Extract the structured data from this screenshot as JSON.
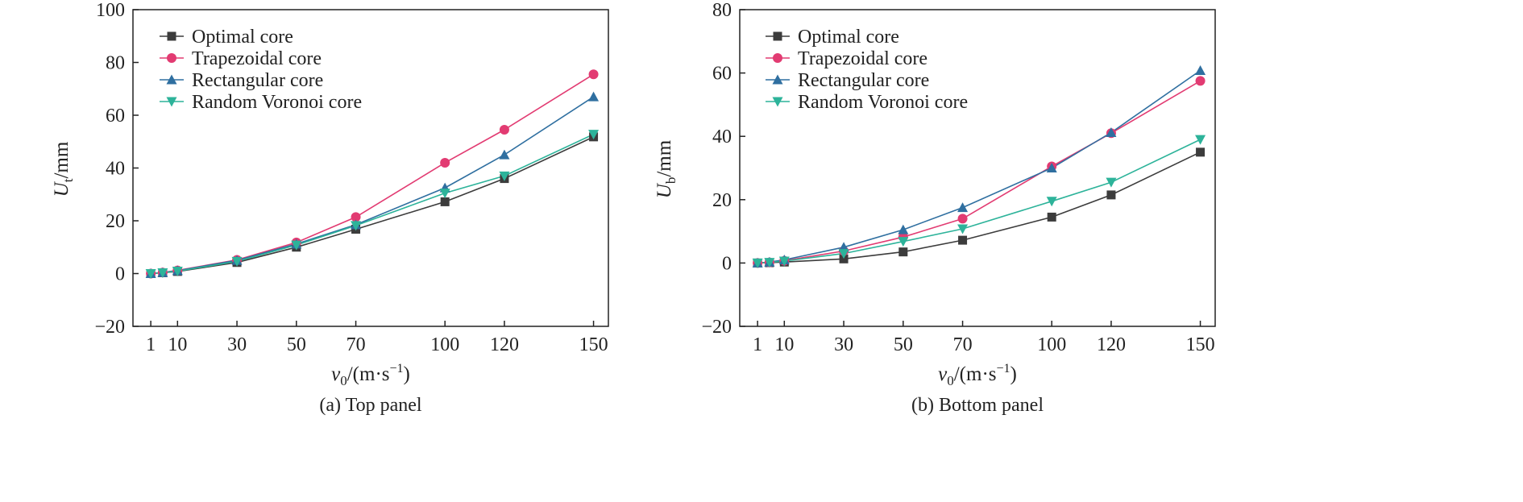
{
  "chart_data": [
    {
      "type": "line",
      "panel_caption": "(a) Top panel",
      "ylabel_main": "U",
      "ylabel_sub": "t",
      "ylabel_unit": "/mm",
      "xlabel_main": "v",
      "xlabel_sub": "0",
      "xlabel_unit": "/(m·s",
      "xlabel_exp": "−1",
      "xlabel_close": ")",
      "xlim": [
        -5,
        155
      ],
      "ylim": [
        -20,
        100
      ],
      "xticks": [
        1,
        10,
        30,
        50,
        70,
        100,
        120,
        150
      ],
      "yticks": [
        -20,
        0,
        20,
        40,
        60,
        80,
        100
      ],
      "ytick_labels": [
        "−20",
        "0",
        "20",
        "40",
        "60",
        "80",
        "100"
      ],
      "x": [
        1,
        5,
        10,
        30,
        50,
        70,
        100,
        120,
        150
      ],
      "series": [
        {
          "name": "Optimal core",
          "marker": "square",
          "color": "#3c3c3c",
          "values": [
            0,
            0.3,
            0.8,
            4.2,
            10.0,
            16.8,
            27.2,
            36.0,
            51.8
          ]
        },
        {
          "name": "Trapezoidal core",
          "marker": "circle",
          "color": "#e23b72",
          "values": [
            0,
            0.4,
            1.2,
            5.2,
            11.8,
            21.4,
            42.0,
            54.5,
            75.5
          ]
        },
        {
          "name": "Rectangular core",
          "marker": "triangle-up",
          "color": "#2f6fa0",
          "values": [
            0,
            0.4,
            1.1,
            5.0,
            11.2,
            18.5,
            32.5,
            45.0,
            67.0
          ]
        },
        {
          "name": "Random Voronoi core",
          "marker": "triangle-down",
          "color": "#2db39a",
          "values": [
            0,
            0.3,
            0.9,
            4.6,
            10.8,
            18.2,
            30.5,
            37.0,
            52.8
          ]
        }
      ]
    },
    {
      "type": "line",
      "panel_caption": "(b) Bottom panel",
      "ylabel_main": "U",
      "ylabel_sub": "b",
      "ylabel_unit": "/mm",
      "xlabel_main": "v",
      "xlabel_sub": "0",
      "xlabel_unit": "/(m·s",
      "xlabel_exp": "−1",
      "xlabel_close": ")",
      "xlim": [
        -5,
        155
      ],
      "ylim": [
        -20,
        80
      ],
      "xticks": [
        1,
        10,
        30,
        50,
        70,
        100,
        120,
        150
      ],
      "yticks": [
        -20,
        0,
        20,
        40,
        60,
        80
      ],
      "ytick_labels": [
        "−20",
        "0",
        "20",
        "40",
        "60",
        "80"
      ],
      "x": [
        1,
        5,
        10,
        30,
        50,
        70,
        100,
        120,
        150
      ],
      "series": [
        {
          "name": "Optimal core",
          "marker": "square",
          "color": "#3c3c3c",
          "values": [
            0,
            0.1,
            0.3,
            1.3,
            3.5,
            7.2,
            14.5,
            21.5,
            35.0
          ]
        },
        {
          "name": "Trapezoidal core",
          "marker": "circle",
          "color": "#e23b72",
          "values": [
            0,
            0.2,
            0.7,
            3.8,
            8.2,
            14.0,
            30.5,
            41.0,
            57.5
          ]
        },
        {
          "name": "Rectangular core",
          "marker": "triangle-up",
          "color": "#2f6fa0",
          "values": [
            0,
            0.3,
            1.0,
            5.0,
            10.5,
            17.5,
            30.0,
            41.2,
            60.8
          ]
        },
        {
          "name": "Random Voronoi core",
          "marker": "triangle-down",
          "color": "#2db39a",
          "values": [
            0,
            0.2,
            0.6,
            3.0,
            6.8,
            10.8,
            19.5,
            25.5,
            39.0
          ]
        }
      ]
    }
  ]
}
